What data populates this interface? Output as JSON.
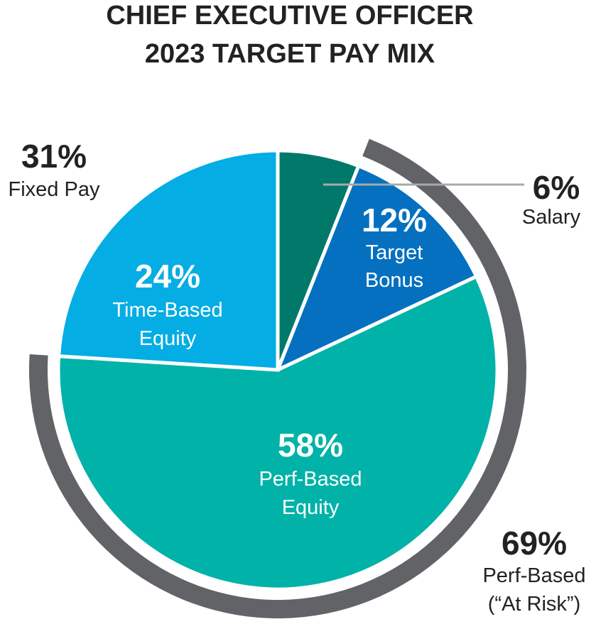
{
  "chart_data": {
    "type": "pie",
    "title_lines": [
      "CHIEF EXECUTIVE OFFICER",
      "2023 TARGET PAY MIX"
    ],
    "slices": [
      {
        "key": "salary",
        "value": 6,
        "pct_label": "6%",
        "label_lines": [
          "Salary"
        ],
        "color": "#00796b",
        "text_color": "#222222"
      },
      {
        "key": "bonus",
        "value": 12,
        "pct_label": "12%",
        "label_lines": [
          "Target",
          "Bonus"
        ],
        "color": "#0570c0",
        "text_color": "#ffffff"
      },
      {
        "key": "perf",
        "value": 58,
        "pct_label": "58%",
        "label_lines": [
          "Perf-Based",
          "Equity"
        ],
        "color": "#00b2a8",
        "text_color": "#ffffff"
      },
      {
        "key": "time",
        "value": 24,
        "pct_label": "24%",
        "label_lines": [
          "Time-Based",
          "Equity"
        ],
        "color": "#04ade4",
        "text_color": "#ffffff"
      }
    ],
    "groups": [
      {
        "key": "fixed",
        "value": 31,
        "pct_label": "31%",
        "label_lines": [
          "Fixed Pay"
        ]
      },
      {
        "key": "at_risk",
        "value": 69,
        "pct_label": "69%",
        "label_lines": [
          "Perf-Based",
          "(“At Risk”)"
        ],
        "ring_color": "#626366"
      }
    ]
  }
}
